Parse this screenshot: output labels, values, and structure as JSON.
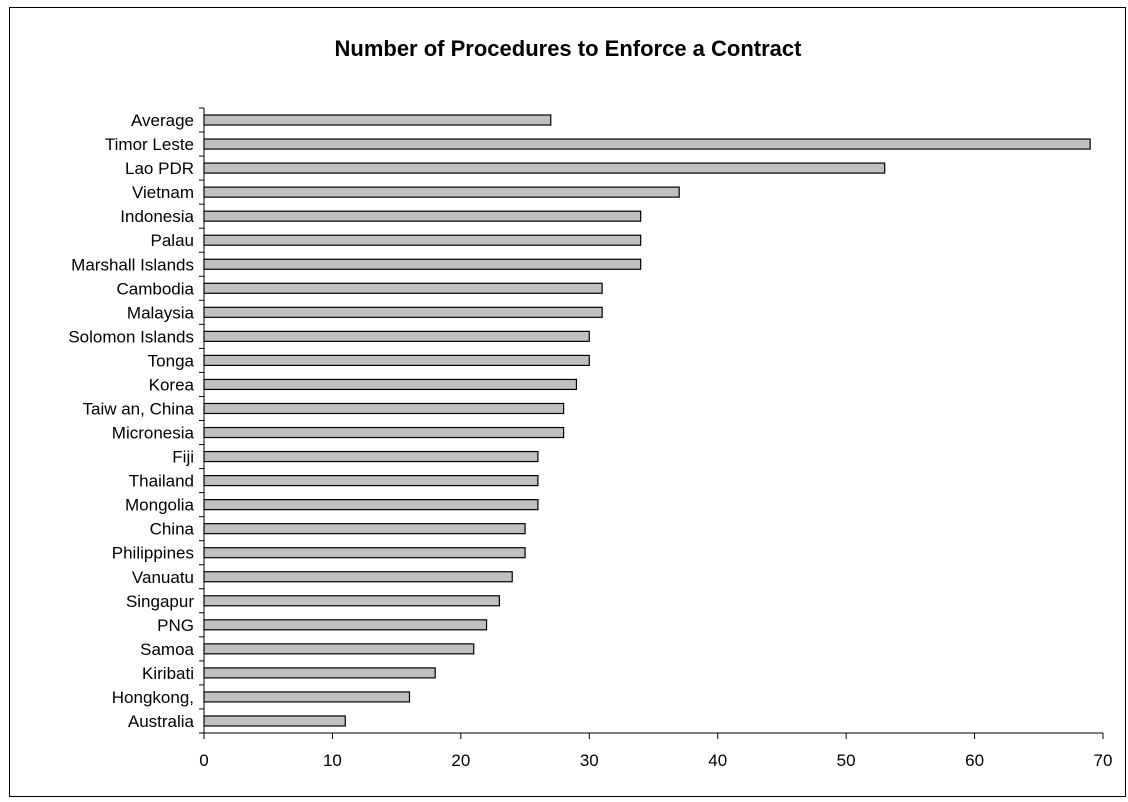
{
  "chart_data": {
    "type": "bar",
    "orientation": "horizontal",
    "title": "Number of Procedures to Enforce a Contract",
    "xlabel": "",
    "ylabel": "",
    "categories": [
      "Average",
      "Timor Leste",
      "Lao PDR",
      "Vietnam",
      "Indonesia",
      "Palau",
      "Marshall Islands",
      "Cambodia",
      "Malaysia",
      "Solomon Islands",
      "Tonga",
      "Korea",
      "Taiw an, China",
      "Micronesia",
      "Fiji",
      "Thailand",
      "Mongolia",
      "China",
      "Philippines",
      "Vanuatu",
      "Singapur",
      "PNG",
      "Samoa",
      "Kiribati",
      "Hongkong,",
      "Australia"
    ],
    "values": [
      27,
      69,
      53,
      37,
      34,
      34,
      34,
      31,
      31,
      30,
      30,
      29,
      28,
      28,
      26,
      26,
      26,
      25,
      25,
      24,
      23,
      22,
      21,
      18,
      16,
      11
    ],
    "xlim": [
      0,
      70
    ],
    "xticks": [
      "0",
      "10",
      "20",
      "30",
      "40",
      "50",
      "60",
      "70"
    ],
    "grid": false,
    "legend": "none",
    "colors": {
      "bar_fill": "#c0c0c0",
      "bar_stroke": "#000000",
      "axis": "#000000"
    }
  }
}
